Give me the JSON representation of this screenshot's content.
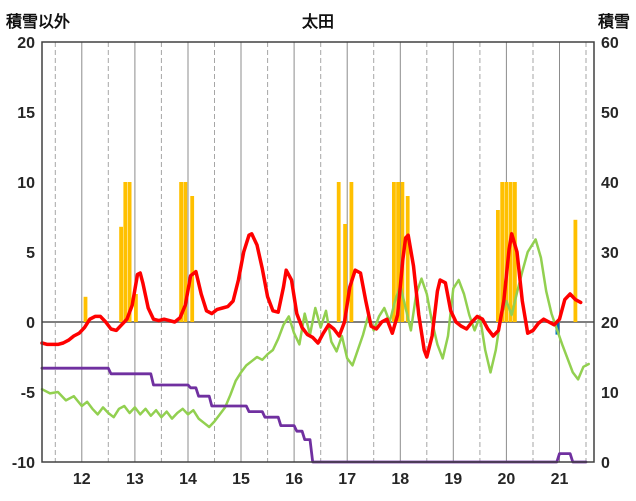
{
  "header": {
    "left_axis_title": "積雪以外",
    "title": "太田",
    "right_axis_title": "積雪"
  },
  "chart_data": {
    "type": "line",
    "title": "太田",
    "left_axis": {
      "title": "積雪以外",
      "min": -10,
      "max": 20,
      "ticks": [
        20,
        15,
        10,
        5,
        0,
        -5,
        -10
      ]
    },
    "right_axis": {
      "title": "積雪",
      "min": 0,
      "max": 60,
      "ticks": [
        60,
        50,
        40,
        30,
        20,
        10,
        0
      ]
    },
    "x_ticks": [
      12,
      13,
      14,
      15,
      16,
      17,
      18,
      19,
      20,
      21
    ],
    "grid": {
      "solid_day_lines": true,
      "dashed_half_day_lines": true,
      "zero_line": true
    },
    "colors": {
      "sunshine_bar": "#FFC000",
      "temperature_line": "#FF0000",
      "wind_line": "#92D050",
      "snow_depth_line": "#7030A0",
      "precipitation_bar": "#0070C0",
      "grid_solid": "#8c8c8c",
      "grid_dashed": "#a6a6a6",
      "zero_line": "#7f7f7f",
      "border": "#404040"
    },
    "series": [
      {
        "name": "sunshine-bars",
        "type": "bar",
        "color": "#FFC000",
        "axis": "left",
        "points": [
          [
            12.07,
            1.8
          ],
          [
            12.74,
            6.8
          ],
          [
            12.82,
            10
          ],
          [
            12.9,
            10
          ],
          [
            13.02,
            2.0
          ],
          [
            13.87,
            10
          ],
          [
            13.95,
            10
          ],
          [
            14.08,
            9
          ],
          [
            16.84,
            10
          ],
          [
            16.96,
            7
          ],
          [
            17.08,
            10
          ],
          [
            17.88,
            10
          ],
          [
            17.96,
            10
          ],
          [
            18.04,
            10
          ],
          [
            18.14,
            9
          ],
          [
            19.84,
            8
          ],
          [
            19.92,
            10
          ],
          [
            20.0,
            10
          ],
          [
            20.08,
            10
          ],
          [
            20.16,
            10
          ],
          [
            21.3,
            7.3
          ]
        ]
      },
      {
        "name": "precipitation-bars",
        "type": "bar",
        "color": "#0070C0",
        "axis": "left",
        "points": [
          [
            20.96,
            -0.9
          ]
        ]
      },
      {
        "name": "wind-line",
        "type": "line",
        "color": "#92D050",
        "width": 2.5,
        "axis": "left",
        "points": [
          [
            11.25,
            -4.8
          ],
          [
            11.4,
            -5.1
          ],
          [
            11.55,
            -5.0
          ],
          [
            11.7,
            -5.6
          ],
          [
            11.85,
            -5.3
          ],
          [
            12.0,
            -6.0
          ],
          [
            12.1,
            -5.7
          ],
          [
            12.2,
            -6.2
          ],
          [
            12.3,
            -6.6
          ],
          [
            12.4,
            -6.1
          ],
          [
            12.5,
            -6.5
          ],
          [
            12.6,
            -6.8
          ],
          [
            12.7,
            -6.2
          ],
          [
            12.8,
            -6.0
          ],
          [
            12.9,
            -6.5
          ],
          [
            13.0,
            -6.1
          ],
          [
            13.1,
            -6.6
          ],
          [
            13.2,
            -6.2
          ],
          [
            13.3,
            -6.7
          ],
          [
            13.4,
            -6.3
          ],
          [
            13.5,
            -6.8
          ],
          [
            13.6,
            -6.4
          ],
          [
            13.7,
            -6.9
          ],
          [
            13.8,
            -6.5
          ],
          [
            13.9,
            -6.2
          ],
          [
            14.0,
            -6.6
          ],
          [
            14.1,
            -6.3
          ],
          [
            14.2,
            -6.9
          ],
          [
            14.3,
            -7.2
          ],
          [
            14.4,
            -7.5
          ],
          [
            14.5,
            -7.1
          ],
          [
            14.6,
            -6.6
          ],
          [
            14.7,
            -6.1
          ],
          [
            14.8,
            -5.2
          ],
          [
            14.9,
            -4.2
          ],
          [
            15.0,
            -3.6
          ],
          [
            15.1,
            -3.1
          ],
          [
            15.2,
            -2.8
          ],
          [
            15.3,
            -2.5
          ],
          [
            15.4,
            -2.7
          ],
          [
            15.5,
            -2.3
          ],
          [
            15.6,
            -2.0
          ],
          [
            15.7,
            -1.2
          ],
          [
            15.8,
            -0.2
          ],
          [
            15.9,
            0.4
          ],
          [
            16.0,
            -0.8
          ],
          [
            16.1,
            -1.6
          ],
          [
            16.2,
            0.6
          ],
          [
            16.3,
            -0.9
          ],
          [
            16.4,
            1.0
          ],
          [
            16.5,
            -0.4
          ],
          [
            16.6,
            0.8
          ],
          [
            16.7,
            -1.4
          ],
          [
            16.8,
            -2.1
          ],
          [
            16.9,
            -1.0
          ],
          [
            17.0,
            -2.6
          ],
          [
            17.1,
            -3.1
          ],
          [
            17.2,
            -2.0
          ],
          [
            17.3,
            -0.9
          ],
          [
            17.4,
            0.5
          ],
          [
            17.5,
            -0.6
          ],
          [
            17.6,
            0.4
          ],
          [
            17.7,
            1.0
          ],
          [
            17.8,
            0.0
          ],
          [
            17.9,
            1.5
          ],
          [
            18.0,
            2.6
          ],
          [
            18.1,
            1.0
          ],
          [
            18.2,
            -0.6
          ],
          [
            18.3,
            2.0
          ],
          [
            18.4,
            3.1
          ],
          [
            18.5,
            2.0
          ],
          [
            18.6,
            0.0
          ],
          [
            18.7,
            -1.6
          ],
          [
            18.8,
            -2.6
          ],
          [
            18.9,
            -1.0
          ],
          [
            19.0,
            2.4
          ],
          [
            19.1,
            3.0
          ],
          [
            19.2,
            2.0
          ],
          [
            19.3,
            0.5
          ],
          [
            19.4,
            -0.6
          ],
          [
            19.5,
            0.4
          ],
          [
            19.6,
            -2.0
          ],
          [
            19.7,
            -3.6
          ],
          [
            19.8,
            -2.0
          ],
          [
            19.9,
            0.5
          ],
          [
            20.0,
            1.5
          ],
          [
            20.1,
            0.5
          ],
          [
            20.2,
            2.1
          ],
          [
            20.3,
            3.6
          ],
          [
            20.4,
            5.0
          ],
          [
            20.5,
            5.6
          ],
          [
            20.55,
            5.9
          ],
          [
            20.65,
            4.6
          ],
          [
            20.75,
            2.2
          ],
          [
            20.85,
            0.6
          ],
          [
            20.95,
            -0.5
          ],
          [
            21.05,
            -1.6
          ],
          [
            21.15,
            -2.6
          ],
          [
            21.25,
            -3.6
          ],
          [
            21.35,
            -4.1
          ],
          [
            21.45,
            -3.2
          ],
          [
            21.55,
            -3.0
          ]
        ]
      },
      {
        "name": "snow-depth-line",
        "type": "line",
        "color": "#7030A0",
        "width": 2.8,
        "axis": "right",
        "points": [
          [
            11.25,
            -3.3
          ],
          [
            12.5,
            -3.3
          ],
          [
            12.55,
            -3.7
          ],
          [
            13.3,
            -3.7
          ],
          [
            13.35,
            -4.5
          ],
          [
            14.0,
            -4.5
          ],
          [
            14.05,
            -4.7
          ],
          [
            14.15,
            -4.7
          ],
          [
            14.2,
            -5.3
          ],
          [
            14.4,
            -5.3
          ],
          [
            14.45,
            -6.0
          ],
          [
            15.1,
            -6.0
          ],
          [
            15.15,
            -6.4
          ],
          [
            15.4,
            -6.4
          ],
          [
            15.45,
            -6.8
          ],
          [
            15.7,
            -6.8
          ],
          [
            15.75,
            -7.4
          ],
          [
            16.0,
            -7.4
          ],
          [
            16.05,
            -7.8
          ],
          [
            16.15,
            -7.8
          ],
          [
            16.2,
            -8.4
          ],
          [
            16.3,
            -8.4
          ],
          [
            16.35,
            -10
          ],
          [
            20.95,
            -10
          ],
          [
            21.0,
            -9.4
          ],
          [
            21.2,
            -9.4
          ],
          [
            21.25,
            -10
          ],
          [
            21.5,
            -10
          ]
        ]
      },
      {
        "name": "temperature-line",
        "type": "line",
        "color": "#FF0000",
        "width": 3.5,
        "axis": "left",
        "points": [
          [
            11.25,
            -1.5
          ],
          [
            11.35,
            -1.6
          ],
          [
            11.45,
            -1.6
          ],
          [
            11.55,
            -1.6
          ],
          [
            11.65,
            -1.5
          ],
          [
            11.75,
            -1.3
          ],
          [
            11.85,
            -1.0
          ],
          [
            11.95,
            -0.8
          ],
          [
            12.05,
            -0.4
          ],
          [
            12.15,
            0.2
          ],
          [
            12.25,
            0.4
          ],
          [
            12.35,
            0.4
          ],
          [
            12.45,
            0.0
          ],
          [
            12.55,
            -0.5
          ],
          [
            12.65,
            -0.6
          ],
          [
            12.75,
            -0.2
          ],
          [
            12.85,
            0.2
          ],
          [
            12.95,
            1.2
          ],
          [
            13.05,
            3.4
          ],
          [
            13.1,
            3.5
          ],
          [
            13.15,
            2.8
          ],
          [
            13.25,
            1.0
          ],
          [
            13.35,
            0.2
          ],
          [
            13.45,
            0.1
          ],
          [
            13.55,
            0.2
          ],
          [
            13.65,
            0.1
          ],
          [
            13.75,
            0.0
          ],
          [
            13.85,
            0.3
          ],
          [
            13.95,
            1.2
          ],
          [
            14.05,
            3.3
          ],
          [
            14.15,
            3.6
          ],
          [
            14.25,
            2.0
          ],
          [
            14.35,
            0.8
          ],
          [
            14.45,
            0.6
          ],
          [
            14.55,
            0.9
          ],
          [
            14.65,
            1.0
          ],
          [
            14.75,
            1.1
          ],
          [
            14.85,
            1.5
          ],
          [
            14.95,
            3.0
          ],
          [
            15.05,
            5.0
          ],
          [
            15.15,
            6.2
          ],
          [
            15.2,
            6.3
          ],
          [
            15.3,
            5.5
          ],
          [
            15.4,
            3.8
          ],
          [
            15.5,
            1.8
          ],
          [
            15.6,
            0.8
          ],
          [
            15.7,
            0.7
          ],
          [
            15.8,
            2.5
          ],
          [
            15.85,
            3.7
          ],
          [
            15.95,
            3.0
          ],
          [
            16.05,
            0.6
          ],
          [
            16.15,
            -0.4
          ],
          [
            16.25,
            -0.9
          ],
          [
            16.35,
            -1.1
          ],
          [
            16.45,
            -1.5
          ],
          [
            16.55,
            -0.8
          ],
          [
            16.65,
            -0.2
          ],
          [
            16.75,
            -0.5
          ],
          [
            16.85,
            -1.0
          ],
          [
            16.95,
            0.0
          ],
          [
            17.05,
            2.5
          ],
          [
            17.15,
            3.7
          ],
          [
            17.25,
            3.5
          ],
          [
            17.35,
            1.5
          ],
          [
            17.45,
            -0.3
          ],
          [
            17.55,
            -0.5
          ],
          [
            17.65,
            0.0
          ],
          [
            17.75,
            0.2
          ],
          [
            17.85,
            -0.8
          ],
          [
            17.95,
            0.5
          ],
          [
            18.05,
            4.5
          ],
          [
            18.1,
            6.0
          ],
          [
            18.15,
            6.2
          ],
          [
            18.25,
            4.0
          ],
          [
            18.35,
            0.5
          ],
          [
            18.45,
            -2.0
          ],
          [
            18.5,
            -2.5
          ],
          [
            18.6,
            -1.0
          ],
          [
            18.7,
            2.2
          ],
          [
            18.75,
            3.0
          ],
          [
            18.85,
            2.8
          ],
          [
            18.95,
            0.8
          ],
          [
            19.05,
            0.0
          ],
          [
            19.15,
            -0.3
          ],
          [
            19.25,
            -0.5
          ],
          [
            19.35,
            0.0
          ],
          [
            19.45,
            0.4
          ],
          [
            19.55,
            0.2
          ],
          [
            19.65,
            -0.5
          ],
          [
            19.75,
            -1.0
          ],
          [
            19.85,
            -0.6
          ],
          [
            19.95,
            1.5
          ],
          [
            20.05,
            5.2
          ],
          [
            20.1,
            6.3
          ],
          [
            20.2,
            5.0
          ],
          [
            20.3,
            1.5
          ],
          [
            20.4,
            -0.8
          ],
          [
            20.5,
            -0.6
          ],
          [
            20.6,
            -0.1
          ],
          [
            20.7,
            0.2
          ],
          [
            20.8,
            0.0
          ],
          [
            20.9,
            -0.2
          ],
          [
            21.0,
            0.2
          ],
          [
            21.1,
            1.6
          ],
          [
            21.2,
            2.0
          ],
          [
            21.3,
            1.6
          ],
          [
            21.4,
            1.4
          ]
        ]
      }
    ]
  }
}
